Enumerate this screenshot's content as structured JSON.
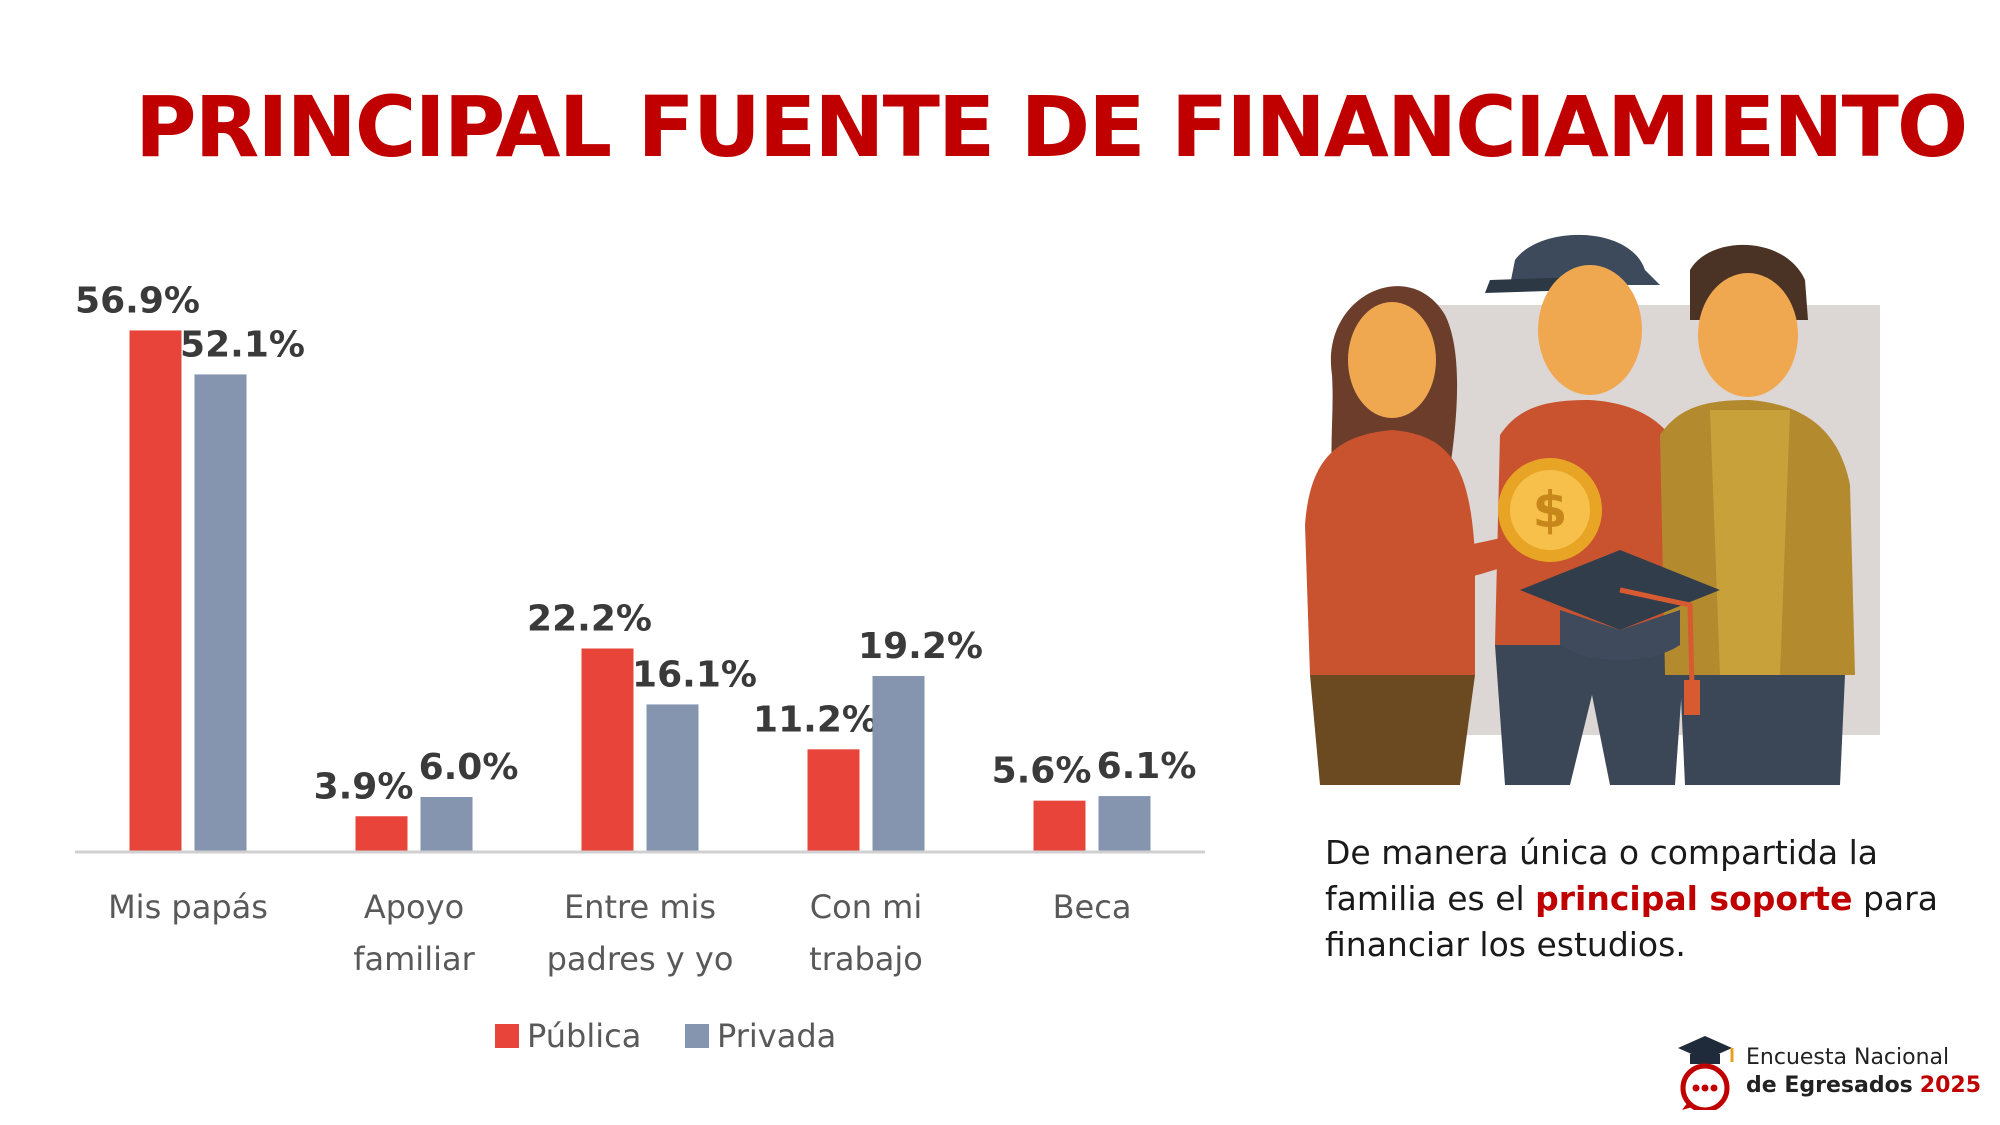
{
  "title": "PRINCIPAL FUENTE DE FINANCIAMIENTO",
  "chart_data": {
    "type": "bar",
    "categories": [
      [
        "Mis papás"
      ],
      [
        "Apoyo",
        "familiar"
      ],
      [
        "Entre mis",
        "padres y yo"
      ],
      [
        "Con mi",
        "trabajo"
      ],
      [
        "Beca"
      ]
    ],
    "series": [
      {
        "name": "Pública",
        "values": [
          56.9,
          3.9,
          22.2,
          11.2,
          5.6
        ],
        "labels": [
          "56.9%",
          "3.9%",
          "22.2%",
          "11.2%",
          "5.6%"
        ],
        "color": "#e8443a"
      },
      {
        "name": "Privada",
        "values": [
          52.1,
          6.0,
          16.1,
          19.2,
          6.1
        ],
        "labels": [
          "52.1%",
          "6.0%",
          "16.1%",
          "19.2%",
          "6.1%"
        ],
        "color": "#8595b0"
      }
    ],
    "ylim": [
      0,
      60
    ],
    "grid": false,
    "legend": "bottom"
  },
  "caption": {
    "before": "De manera única o compartida la familia es el ",
    "highlight": "principal soporte",
    "after": " para financiar los estudios."
  },
  "logo": {
    "line1": "Encuesta Nacional",
    "line2": "de Egresados",
    "year": "2025"
  },
  "colors": {
    "accent": "#c00000"
  },
  "icons": [
    "family-illustration",
    "graduation-cap-icon",
    "chat-bubble-icon"
  ]
}
